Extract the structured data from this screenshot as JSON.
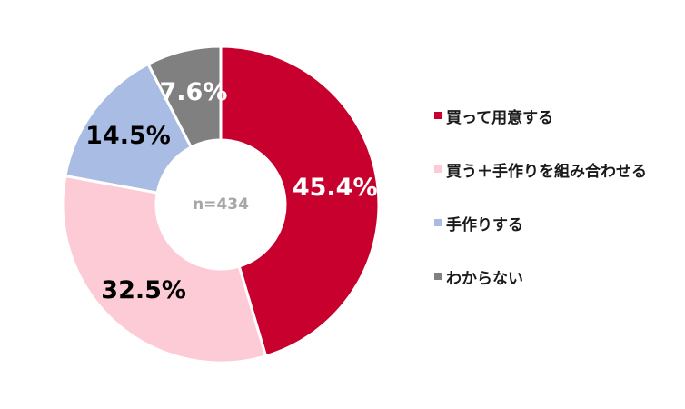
{
  "chart_data": {
    "type": "pie",
    "donut": true,
    "center_text": "n=434",
    "slices": [
      {
        "label": "買って用意する",
        "value": 45.4,
        "value_label": "45.4%",
        "color": "#c8002d",
        "label_color": "#ffffff"
      },
      {
        "label": "買う＋手作りを組み合わせる",
        "value": 32.5,
        "value_label": "32.5%",
        "color": "#fccbd5",
        "label_color": "#000000"
      },
      {
        "label": "手作りする",
        "value": 14.5,
        "value_label": "14.5%",
        "color": "#a9bce4",
        "label_color": "#000000"
      },
      {
        "label": "わからない",
        "value": 7.6,
        "value_label": "7.6%",
        "color": "#808080",
        "label_color": "#ffffff"
      }
    ],
    "legend_position": "right",
    "start_angle_deg": 0,
    "direction": "clockwise"
  }
}
